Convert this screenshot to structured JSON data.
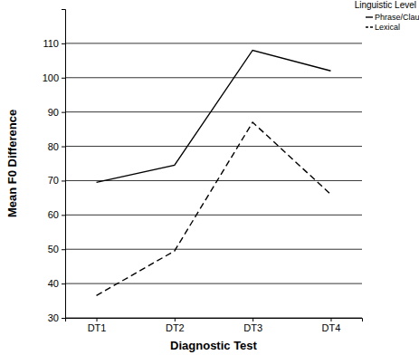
{
  "chart_data": {
    "type": "line",
    "x_label": "Diagnostic Test",
    "y_label": "Mean F0 Difference",
    "legend_title": "Linguistic Level",
    "categories": [
      "DT1",
      "DT2",
      "DT3",
      "DT4"
    ],
    "series": [
      {
        "name": "Phrase/Clause",
        "color": "#000000",
        "line_style": "solid",
        "values": [
          69.5,
          74.5,
          108,
          102
        ]
      },
      {
        "name": "Lexical",
        "color": "#000000",
        "line_style": "dashed",
        "values": [
          36.5,
          49.5,
          87,
          66
        ]
      }
    ],
    "ylim": [
      30,
      120
    ],
    "yticks": [
      30,
      40,
      50,
      60,
      70,
      80,
      90,
      100,
      110
    ],
    "grid": true,
    "legend": "top-right"
  }
}
